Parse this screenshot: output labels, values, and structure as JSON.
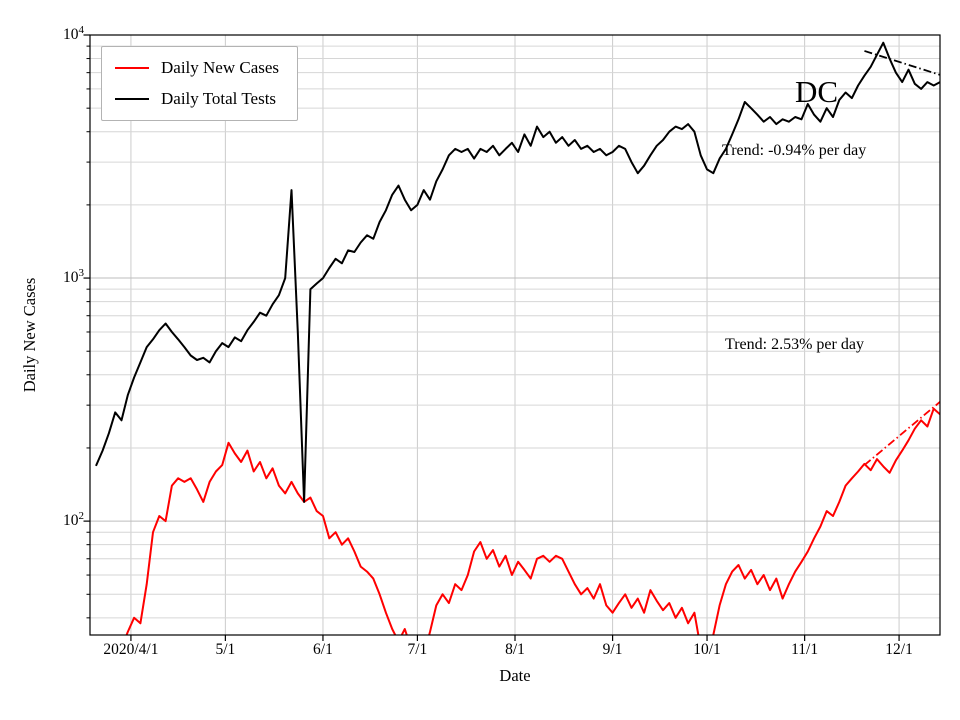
{
  "figure": {
    "background": "#ffffff",
    "annotation_state": "DC",
    "xlabel": "Date",
    "ylabel": "Daily New Cases",
    "trend_tests_label": "Trend: -0.94% per day",
    "trend_cases_label": "Trend: 2.53% per day"
  },
  "legend": {
    "items": [
      {
        "label": "Daily New Cases",
        "color": "#ff0000"
      },
      {
        "label": "Daily Total Tests",
        "color": "#000000"
      }
    ]
  },
  "chart_data": {
    "type": "line",
    "title": "DC",
    "xlabel": "Date",
    "ylabel": "Daily New Cases",
    "y_scale": "log",
    "y_range": [
      34,
      10000
    ],
    "grid": true,
    "legend_position": "upper left",
    "x_start_date": "2020-03-21",
    "x_step_days": 2,
    "x_ticks": [
      {
        "day": 11,
        "label": "2020/4/1"
      },
      {
        "day": 41,
        "label": "5/1"
      },
      {
        "day": 72,
        "label": "6/1"
      },
      {
        "day": 102,
        "label": "7/1"
      },
      {
        "day": 133,
        "label": "8/1"
      },
      {
        "day": 164,
        "label": "9/1"
      },
      {
        "day": 194,
        "label": "10/1"
      },
      {
        "day": 225,
        "label": "11/1"
      },
      {
        "day": 255,
        "label": "12/1"
      }
    ],
    "y_major_ticks": [
      {
        "value": 100,
        "exponent": 2
      },
      {
        "value": 1000,
        "exponent": 3
      },
      {
        "value": 10000,
        "exponent": 4
      }
    ],
    "series": [
      {
        "name": "Daily New Cases",
        "color": "#ff0000",
        "values": [
          28,
          30,
          27,
          32,
          30,
          35,
          40,
          38,
          55,
          90,
          105,
          100,
          140,
          150,
          145,
          150,
          135,
          120,
          145,
          160,
          170,
          210,
          190,
          175,
          195,
          160,
          175,
          150,
          165,
          140,
          130,
          145,
          130,
          120,
          125,
          110,
          105,
          85,
          90,
          80,
          85,
          75,
          65,
          62,
          58,
          50,
          42,
          36,
          32,
          36,
          30,
          33,
          28,
          35,
          45,
          50,
          46,
          55,
          52,
          60,
          75,
          82,
          70,
          76,
          65,
          72,
          60,
          68,
          63,
          58,
          70,
          72,
          68,
          72,
          70,
          62,
          55,
          50,
          53,
          48,
          55,
          45,
          42,
          46,
          50,
          44,
          48,
          42,
          52,
          47,
          43,
          46,
          40,
          44,
          38,
          42,
          30,
          28,
          34,
          45,
          55,
          62,
          66,
          58,
          63,
          55,
          60,
          52,
          58,
          48,
          55,
          62,
          68,
          75,
          85,
          95,
          110,
          105,
          120,
          140,
          150,
          160,
          172,
          162,
          180,
          168,
          158,
          178,
          195,
          215,
          240,
          260,
          245,
          290,
          275
        ]
      },
      {
        "name": "Daily Total Tests",
        "color": "#000000",
        "values": [
          170,
          195,
          230,
          280,
          260,
          330,
          390,
          450,
          520,
          560,
          610,
          650,
          600,
          560,
          520,
          480,
          460,
          470,
          450,
          500,
          540,
          520,
          570,
          550,
          610,
          660,
          720,
          700,
          780,
          850,
          1000,
          2300,
          600,
          120,
          900,
          950,
          1000,
          1100,
          1200,
          1150,
          1300,
          1280,
          1400,
          1500,
          1450,
          1700,
          1900,
          2200,
          2400,
          2100,
          1900,
          2000,
          2300,
          2100,
          2500,
          2800,
          3200,
          3400,
          3300,
          3400,
          3100,
          3400,
          3300,
          3500,
          3200,
          3400,
          3600,
          3300,
          3900,
          3500,
          4200,
          3800,
          4000,
          3600,
          3800,
          3500,
          3700,
          3400,
          3500,
          3300,
          3400,
          3200,
          3300,
          3500,
          3400,
          3000,
          2700,
          2900,
          3200,
          3500,
          3700,
          4000,
          4200,
          4100,
          4300,
          4000,
          3200,
          2800,
          2700,
          3100,
          3400,
          3900,
          4500,
          5300,
          5000,
          4700,
          4400,
          4600,
          4300,
          4500,
          4400,
          4600,
          4500,
          5200,
          4700,
          4400,
          5000,
          4600,
          5400,
          5800,
          5500,
          6200,
          6800,
          7400,
          8300,
          9300,
          8000,
          7000,
          6400,
          7200,
          6300,
          6000,
          6400,
          6200,
          6400
        ]
      }
    ],
    "trends": [
      {
        "name": "tests-trend",
        "label": "Trend: -0.94% per day",
        "rate_pct_per_day": -0.94,
        "start_day": 244,
        "end_day": 268,
        "start_value": 8600,
        "color": "#000000",
        "line_style": "dashdot"
      },
      {
        "name": "cases-trend",
        "label": "Trend: 2.53% per day",
        "rate_pct_per_day": 2.53,
        "start_day": 244,
        "end_day": 268,
        "start_value": 170,
        "color": "#ff0000",
        "line_style": "dashdot"
      }
    ]
  }
}
